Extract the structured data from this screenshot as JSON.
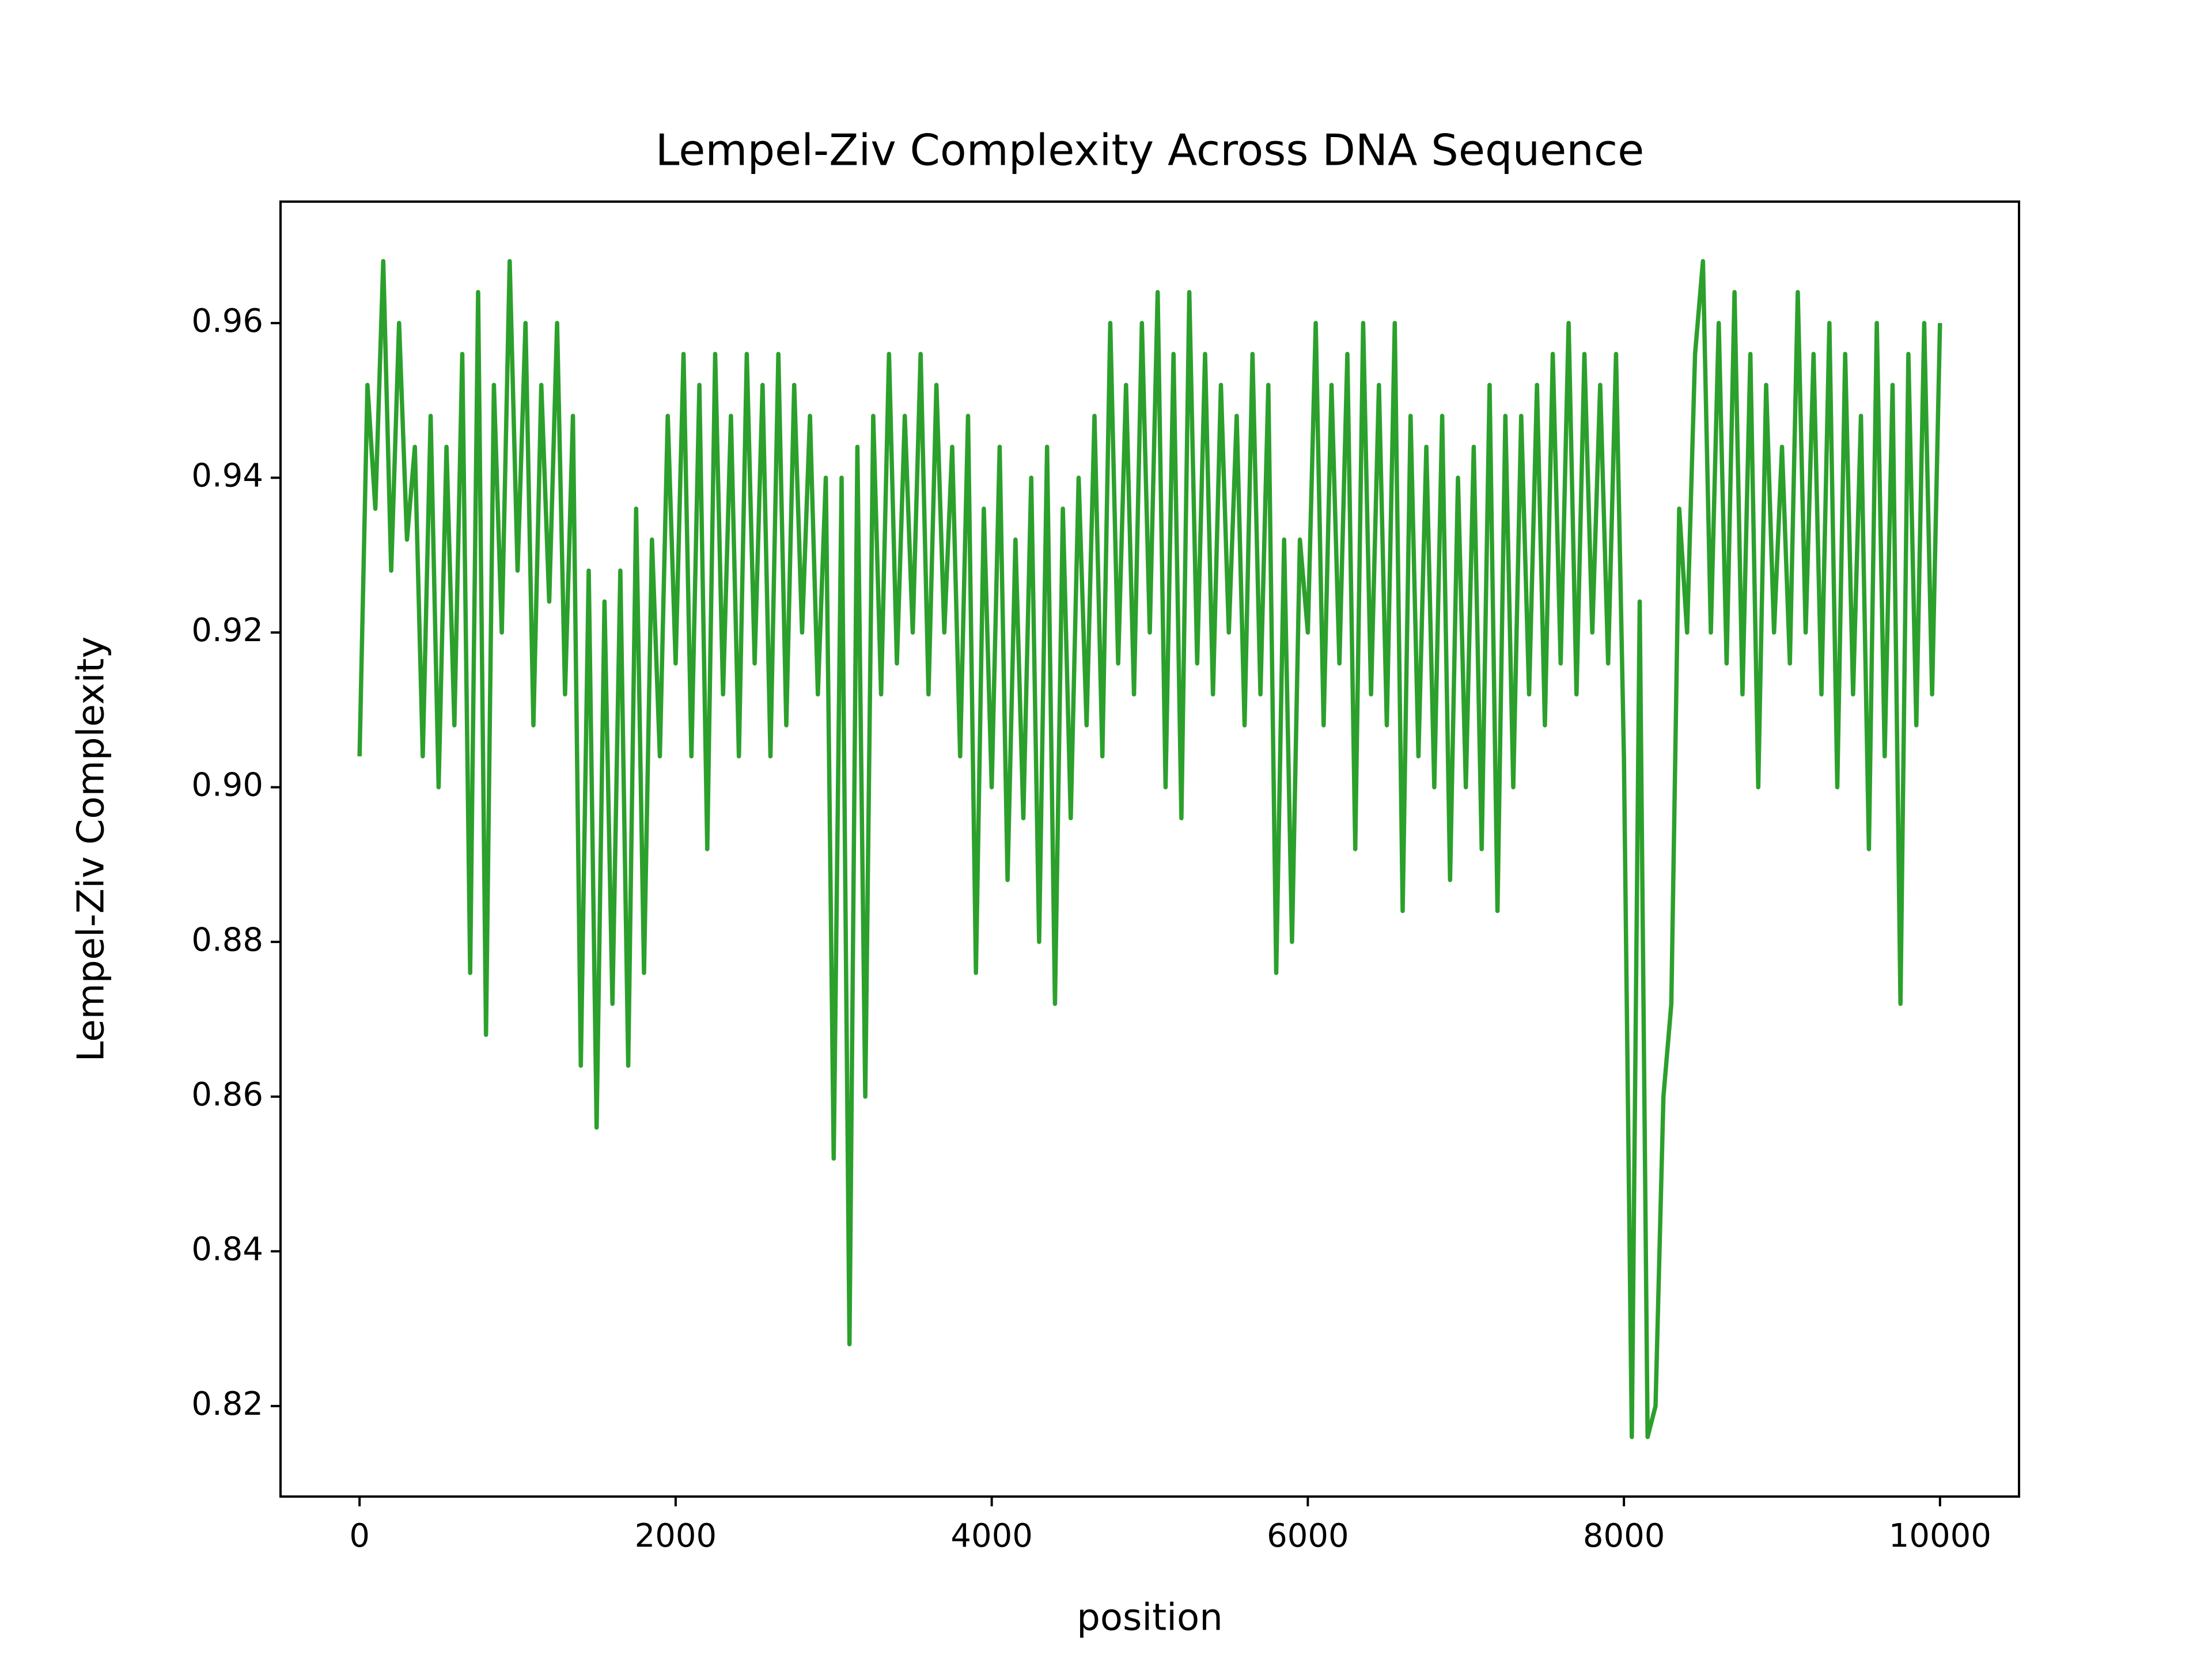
{
  "chart_data": {
    "type": "line",
    "title": "Lempel-Ziv Complexity Across DNA Sequence",
    "xlabel": "position",
    "ylabel": "Lempel-Ziv Complexity",
    "x": [
      0,
      50,
      100,
      150,
      200,
      250,
      300,
      350,
      400,
      450,
      500,
      550,
      600,
      650,
      700,
      750,
      800,
      850,
      900,
      950,
      1000,
      1050,
      1100,
      1150,
      1200,
      1250,
      1300,
      1350,
      1400,
      1450,
      1500,
      1550,
      1600,
      1650,
      1700,
      1750,
      1800,
      1850,
      1900,
      1950,
      2000,
      2050,
      2100,
      2150,
      2200,
      2250,
      2300,
      2350,
      2400,
      2450,
      2500,
      2550,
      2600,
      2650,
      2700,
      2750,
      2800,
      2850,
      2900,
      2950,
      3000,
      3050,
      3100,
      3150,
      3200,
      3250,
      3300,
      3350,
      3400,
      3450,
      3500,
      3550,
      3600,
      3650,
      3700,
      3750,
      3800,
      3850,
      3900,
      3950,
      4000,
      4050,
      4100,
      4150,
      4200,
      4250,
      4300,
      4350,
      4400,
      4450,
      4500,
      4550,
      4600,
      4650,
      4700,
      4750,
      4800,
      4850,
      4900,
      4950,
      5000,
      5050,
      5100,
      5150,
      5200,
      5250,
      5300,
      5350,
      5400,
      5450,
      5500,
      5550,
      5600,
      5650,
      5700,
      5750,
      5800,
      5850,
      5900,
      5950,
      6000,
      6050,
      6100,
      6150,
      6200,
      6250,
      6300,
      6350,
      6400,
      6450,
      6500,
      6550,
      6600,
      6650,
      6700,
      6750,
      6800,
      6850,
      6900,
      6950,
      7000,
      7050,
      7100,
      7150,
      7200,
      7250,
      7300,
      7350,
      7400,
      7450,
      7500,
      7550,
      7600,
      7650,
      7700,
      7750,
      7800,
      7850,
      7900,
      7950,
      8000,
      8050,
      8100,
      8150,
      8200,
      8250,
      8300,
      8350,
      8400,
      8450,
      8500,
      8550,
      8600,
      8650,
      8700,
      8750,
      8800,
      8850,
      8900,
      8950,
      9000,
      9050,
      9100,
      9150,
      9200,
      9250,
      9300,
      9350,
      9400,
      9450,
      9500,
      9550,
      9600,
      9650,
      9700,
      9750,
      9800,
      9850,
      9900,
      9950,
      10000
    ],
    "series": [
      {
        "name": "Lempel-Ziv Complexity",
        "color": "#2ca02c",
        "values": [
          0.904,
          0.952,
          0.936,
          0.968,
          0.928,
          0.96,
          0.932,
          0.944,
          0.904,
          0.948,
          0.9,
          0.944,
          0.908,
          0.956,
          0.876,
          0.964,
          0.868,
          0.952,
          0.92,
          0.968,
          0.928,
          0.96,
          0.908,
          0.952,
          0.924,
          0.96,
          0.912,
          0.948,
          0.864,
          0.928,
          0.856,
          0.924,
          0.872,
          0.928,
          0.864,
          0.936,
          0.876,
          0.932,
          0.904,
          0.948,
          0.916,
          0.956,
          0.904,
          0.952,
          0.892,
          0.956,
          0.912,
          0.948,
          0.904,
          0.956,
          0.916,
          0.952,
          0.904,
          0.956,
          0.908,
          0.952,
          0.92,
          0.948,
          0.912,
          0.94,
          0.852,
          0.94,
          0.828,
          0.944,
          0.86,
          0.948,
          0.912,
          0.956,
          0.916,
          0.948,
          0.92,
          0.956,
          0.912,
          0.952,
          0.92,
          0.944,
          0.904,
          0.948,
          0.876,
          0.936,
          0.9,
          0.944,
          0.888,
          0.932,
          0.896,
          0.94,
          0.88,
          0.944,
          0.872,
          0.936,
          0.896,
          0.94,
          0.908,
          0.948,
          0.904,
          0.96,
          0.916,
          0.952,
          0.912,
          0.96,
          0.92,
          0.964,
          0.9,
          0.956,
          0.896,
          0.964,
          0.916,
          0.956,
          0.912,
          0.952,
          0.92,
          0.948,
          0.908,
          0.956,
          0.912,
          0.952,
          0.876,
          0.932,
          0.88,
          0.932,
          0.92,
          0.96,
          0.908,
          0.952,
          0.916,
          0.956,
          0.892,
          0.96,
          0.912,
          0.952,
          0.908,
          0.96,
          0.884,
          0.948,
          0.904,
          0.944,
          0.9,
          0.948,
          0.888,
          0.94,
          0.9,
          0.944,
          0.892,
          0.952,
          0.884,
          0.948,
          0.9,
          0.948,
          0.912,
          0.952,
          0.908,
          0.956,
          0.916,
          0.96,
          0.912,
          0.956,
          0.92,
          0.952,
          0.916,
          0.956,
          0.904,
          0.816,
          0.924,
          0.816,
          0.82,
          0.86,
          0.872,
          0.936,
          0.92,
          0.956,
          0.968,
          0.92,
          0.96,
          0.916,
          0.964,
          0.912,
          0.956,
          0.9,
          0.952,
          0.92,
          0.944,
          0.916,
          0.964,
          0.92,
          0.956,
          0.912,
          0.96,
          0.9,
          0.956,
          0.912,
          0.948,
          0.892,
          0.96,
          0.904,
          0.952,
          0.872,
          0.956,
          0.908,
          0.96,
          0.912,
          0.96
        ]
      }
    ],
    "xlim": [
      -500,
      10500
    ],
    "ylim": [
      0.8083,
      0.9757
    ],
    "xticks": [
      0,
      2000,
      4000,
      6000,
      8000,
      10000
    ],
    "yticks": [
      0.82,
      0.84,
      0.86,
      0.88,
      {
        "value": 0.9,
        "label": "0.90"
      },
      0.92,
      0.94,
      0.96
    ],
    "grid": false
  }
}
